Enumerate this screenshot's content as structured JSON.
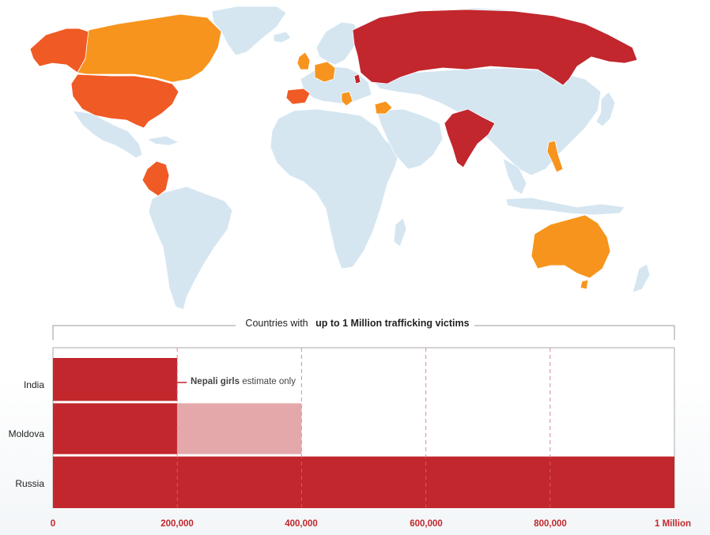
{
  "colors": {
    "ocean_land": "#d5e6f1",
    "tier_1m": "#c1272d",
    "tier_mid": "#f05a24",
    "tier_low": "#f7941d",
    "bar_estimate": "#e4a8ab",
    "grid": "#e2939a"
  },
  "map": {
    "highlighted": [
      {
        "country": "Russia",
        "color": "#c1272d"
      },
      {
        "country": "India",
        "color": "#c1272d"
      },
      {
        "country": "Moldova",
        "color": "#c1272d"
      },
      {
        "country": "United States",
        "color": "#f05a24"
      },
      {
        "country": "Alaska",
        "color": "#f05a24"
      },
      {
        "country": "Colombia",
        "color": "#f05a24"
      },
      {
        "country": "Spain",
        "color": "#f05a24"
      },
      {
        "country": "Canada",
        "color": "#f7941d"
      },
      {
        "country": "United Kingdom",
        "color": "#f7941d"
      },
      {
        "country": "Germany",
        "color": "#f7941d"
      },
      {
        "country": "Greece",
        "color": "#f7941d"
      },
      {
        "country": "Syria",
        "color": "#f7941d"
      },
      {
        "country": "Philippines",
        "color": "#f7941d"
      },
      {
        "country": "Australia",
        "color": "#f7941d"
      }
    ]
  },
  "chart_title_prefix": "Countries with ",
  "chart_title_bold": "up to 1 Million trafficking victims",
  "annotation_bold": "Nepali girls",
  "annotation_rest": " estimate only",
  "chart_data": {
    "type": "bar",
    "orientation": "horizontal",
    "title": "Countries with up to 1 Million trafficking victims",
    "categories": [
      "India",
      "Moldova",
      "Russia"
    ],
    "series": [
      {
        "values": [
          200000,
          200000,
          1000000
        ]
      },
      {
        "values": [
          0,
          200000,
          0
        ]
      }
    ],
    "xlim": [
      0,
      1000000
    ],
    "ticks": [
      0,
      200000,
      400000,
      600000,
      800000,
      1000000
    ],
    "tick_labels": [
      "0",
      "200,000",
      "400,000",
      "600,000",
      "800,000",
      "1 Million"
    ],
    "grid": true
  }
}
